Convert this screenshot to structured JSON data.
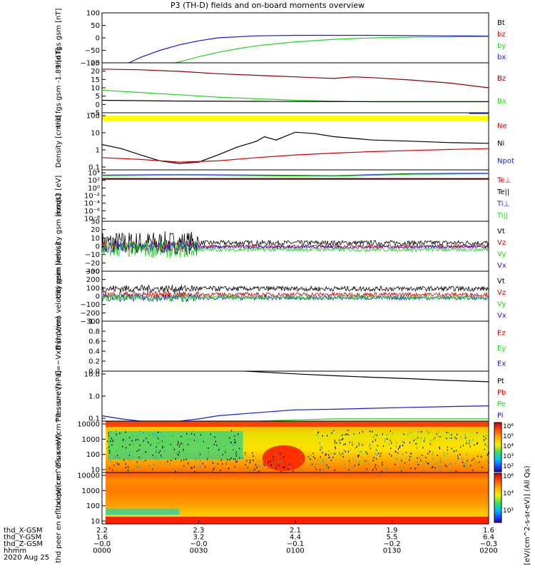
{
  "title": "P3 (TH-D) fields and on-board moments overview",
  "colors": {
    "black": "#000000",
    "red": "#d40000",
    "green": "#1fd41f",
    "blue": "#1a1ad6",
    "darkred": "#8b0000",
    "yellow": "#ffff00"
  },
  "chart_data": [
    {
      "type": "line",
      "ylabel": "thd fgs gsm [nT]",
      "ylim": [
        -100,
        100
      ],
      "yticks": [
        "100",
        "50",
        "0",
        "−50",
        "−100"
      ],
      "legend": [
        {
          "name": "Bt",
          "color": "black"
        },
        {
          "name": "bz",
          "color": "red"
        },
        {
          "name": "by",
          "color": "green"
        },
        {
          "name": "bx",
          "color": "blue"
        }
      ],
      "series": [
        {
          "color": "blue",
          "x": [
            0.07,
            0.1,
            0.15,
            0.2,
            0.25,
            0.3,
            0.4,
            0.5,
            0.6,
            0.7,
            0.8,
            0.9,
            1.0
          ],
          "y": [
            -100,
            -78,
            -50,
            -28,
            -12,
            0,
            8,
            10,
            10,
            10,
            9,
            8,
            7
          ]
        },
        {
          "color": "green",
          "x": [
            0.19,
            0.25,
            0.3,
            0.35,
            0.4,
            0.5,
            0.6,
            0.7,
            0.8,
            0.9,
            1.0
          ],
          "y": [
            -100,
            -76,
            -58,
            -44,
            -32,
            -16,
            -6,
            0,
            3,
            4,
            5
          ]
        }
      ]
    },
    {
      "type": "line",
      "ylabel": "thd fgs gsm -1.89 [nT]",
      "ylim": [
        -7,
        25
      ],
      "yticks": [
        "25",
        "20",
        "15",
        "10",
        "5",
        "0",
        "−5"
      ],
      "legend": [
        {
          "name": "Bz",
          "color": "darkred"
        },
        {
          "name": "Bx",
          "color": "green"
        }
      ],
      "series": [
        {
          "color": "darkred",
          "x": [
            0.0,
            0.1,
            0.2,
            0.3,
            0.4,
            0.5,
            0.55,
            0.6,
            0.65,
            0.7,
            0.8,
            0.9,
            1.0
          ],
          "y": [
            21,
            20.5,
            19.5,
            18,
            17,
            16,
            15.5,
            15,
            16,
            15.5,
            14,
            12,
            9
          ]
        },
        {
          "color": "green",
          "x": [
            0.0,
            0.1,
            0.2,
            0.3,
            0.4,
            0.5,
            0.6,
            0.7,
            0.8,
            0.9,
            1.0
          ],
          "y": [
            7.5,
            6,
            4.5,
            3,
            2,
            1,
            0.5,
            0,
            0,
            0,
            0
          ]
        },
        {
          "color": "black",
          "x": [
            0.0,
            0.2,
            0.4,
            0.6,
            0.8,
            1.0
          ],
          "y": [
            1,
            0.5,
            0.3,
            0.2,
            0.2,
            0.2
          ]
        }
      ],
      "extra": "yellow-bar"
    },
    {
      "type": "line",
      "ylabel": "Density [cm-3]",
      "yscale": "log",
      "ylim": [
        0.03,
        200
      ],
      "yticks": [
        "100",
        "10",
        "1",
        "0.1"
      ],
      "legend": [
        {
          "name": "Ne",
          "color": "red"
        },
        {
          "name": "Ni",
          "color": "black"
        },
        {
          "name": "Npot",
          "color": "blue"
        }
      ],
      "series": [
        {
          "color": "black",
          "x": [
            0.0,
            0.05,
            0.1,
            0.15,
            0.2,
            0.25,
            0.3,
            0.35,
            0.4,
            0.42,
            0.45,
            0.5,
            0.55,
            0.6,
            0.7,
            0.8,
            0.9,
            1.0
          ],
          "y": [
            1.5,
            0.8,
            0.3,
            0.12,
            0.08,
            0.1,
            0.3,
            1,
            2.5,
            5,
            3,
            10,
            8,
            5,
            3,
            2.5,
            2,
            1.8
          ]
        },
        {
          "color": "red",
          "x": [
            0.0,
            0.1,
            0.2,
            0.3,
            0.4,
            0.5,
            0.6,
            0.7,
            0.8,
            0.9,
            1.0
          ],
          "y": [
            0.2,
            0.15,
            0.1,
            0.12,
            0.2,
            0.3,
            0.4,
            0.5,
            0.6,
            0.7,
            0.8
          ]
        },
        {
          "color": "blue",
          "x": [
            0.95,
            1.0
          ],
          "y": [
            180,
            180
          ]
        }
      ]
    },
    {
      "type": "line",
      "ylabel": "moqt3 [eV]",
      "yscale": "log",
      "ylim": [
        1e-10,
        100000.0
      ],
      "yticks": [
        "10⁴",
        "10²",
        "10⁰",
        "10⁻²",
        "10⁻⁴",
        "10⁻⁶",
        "10⁻⁸"
      ],
      "legend": [
        {
          "name": "Te⊥",
          "color": "red"
        },
        {
          "name": "Te||",
          "color": "black"
        },
        {
          "name": "Ti⊥",
          "color": "blue"
        },
        {
          "name": "Ti||",
          "color": "green"
        }
      ],
      "series": [
        {
          "color": "blue",
          "x": [
            0.0,
            0.2,
            0.4,
            0.6,
            0.8,
            1.0
          ],
          "y": [
            3000,
            4000,
            3000,
            2000,
            8000,
            10000
          ]
        },
        {
          "color": "green",
          "x": [
            0.0,
            0.2,
            0.4,
            0.6,
            0.8,
            1.0
          ],
          "y": [
            2000,
            3000,
            2000,
            1500,
            5000,
            7000
          ]
        },
        {
          "color": "red",
          "x": [
            0.0,
            0.2,
            0.4,
            0.6,
            0.8,
            1.0
          ],
          "y": [
            300,
            300,
            300,
            300,
            300,
            300
          ]
        },
        {
          "color": "black",
          "x": [
            0.0,
            0.2,
            0.4,
            0.6,
            0.8,
            1.0
          ],
          "y": [
            200,
            200,
            200,
            200,
            200,
            200
          ]
        }
      ]
    },
    {
      "type": "line",
      "ylabel": "thd peim velocity gsm [km/s]",
      "ylim": [
        -30,
        30
      ],
      "yticks": [
        "30",
        "20",
        "10",
        "0",
        "−10",
        "−20",
        "−30"
      ],
      "legend": [
        {
          "name": "Vt",
          "color": "black"
        },
        {
          "name": "Vz",
          "color": "red"
        },
        {
          "name": "Vy",
          "color": "green"
        },
        {
          "name": "Vx",
          "color": "blue"
        }
      ],
      "noisy": [
        {
          "color": "black",
          "base": 4,
          "amp": [
            14,
            3
          ]
        },
        {
          "color": "red",
          "base": 0,
          "amp": [
            6,
            2
          ]
        },
        {
          "color": "blue",
          "base": -1,
          "amp": [
            7,
            2
          ]
        },
        {
          "color": "green",
          "base": -4,
          "amp": [
            10,
            2.5
          ]
        }
      ]
    },
    {
      "type": "line",
      "ylabel": "thd peem velocity gsm [km/s]",
      "ylim": [
        -300,
        300
      ],
      "yticks": [
        "300",
        "200",
        "100",
        "0",
        "−100",
        "−200",
        "−300"
      ],
      "legend": [
        {
          "name": "Vt",
          "color": "black"
        },
        {
          "name": "Vz",
          "color": "red"
        },
        {
          "name": "Vy",
          "color": "green"
        },
        {
          "name": "Vx",
          "color": "blue"
        }
      ],
      "noisy": [
        {
          "color": "black",
          "base": 90,
          "amp": [
            45,
            30
          ]
        },
        {
          "color": "red",
          "base": 20,
          "amp": [
            40,
            25
          ]
        },
        {
          "color": "blue",
          "base": -20,
          "amp": [
            45,
            25
          ]
        },
        {
          "color": "green",
          "base": -15,
          "amp": [
            40,
            25
          ]
        }
      ]
    },
    {
      "type": "line",
      "ylabel": "E=−VxB [mV/m]",
      "ylim": [
        0,
        1
      ],
      "yticks": [
        "1.0",
        "0.8",
        "0.6",
        "0.4",
        "0.2",
        "0.0"
      ],
      "legend": [
        {
          "name": "Ez",
          "color": "red"
        },
        {
          "name": "Ey",
          "color": "green"
        },
        {
          "name": "Ex",
          "color": "blue"
        }
      ],
      "series": []
    },
    {
      "type": "line",
      "ylabel": "Pressure [nPa]",
      "yscale": "log",
      "ylim": [
        0.03,
        20
      ],
      "yticks": [
        "10.0",
        "1.0",
        "0.1"
      ],
      "legend": [
        {
          "name": "Pt",
          "color": "black"
        },
        {
          "name": "Pb",
          "color": "red"
        },
        {
          "name": "Pe",
          "color": "green"
        },
        {
          "name": "Pi",
          "color": "blue"
        }
      ],
      "series": [
        {
          "color": "black",
          "x": [
            0.37,
            0.5,
            0.6,
            0.7,
            0.8,
            0.9,
            1.0
          ],
          "y": [
            20,
            14,
            11,
            9,
            7.5,
            6,
            5
          ]
        },
        {
          "color": "blue",
          "x": [
            0.0,
            0.05,
            0.1,
            0.15,
            0.2,
            0.25,
            0.3,
            0.4,
            0.5,
            0.6,
            0.7,
            0.8,
            0.9,
            1.0
          ],
          "y": [
            0.06,
            0.04,
            0.03,
            0.028,
            0.03,
            0.04,
            0.06,
            0.09,
            0.13,
            0.14,
            0.16,
            0.18,
            0.2,
            0.22
          ]
        },
        {
          "color": "green",
          "x": [
            0.0,
            0.1,
            0.2,
            0.3,
            0.4,
            0.5,
            0.6,
            0.7,
            0.8,
            0.9,
            1.0
          ],
          "y": [
            0.03,
            0.025,
            0.025,
            0.028,
            0.03,
            0.035,
            0.04,
            0.04,
            0.04,
            0.04,
            0.04
          ]
        }
      ]
    },
    {
      "type": "heatmap",
      "ylabel": "thd peir en eflux eV/(cm^2-s-sr-eV)",
      "yscale": "log",
      "ylim": [
        6,
        20000
      ],
      "yticks": [
        "10000",
        "1000",
        "100",
        "10"
      ],
      "variant": "ion"
    },
    {
      "type": "heatmap",
      "ylabel": "thd peer en eflux eV/(cm^2-s-sr-eV)",
      "yscale": "log",
      "ylim": [
        6,
        20000
      ],
      "yticks": [
        "10000",
        "1000",
        "100",
        "10"
      ],
      "variant": "electron"
    }
  ],
  "colorbar": {
    "label": "[eV/(cm^2-s-sr-eV)] (All Qs)",
    "ticks_upper": [
      "10⁶",
      "10⁵",
      "10⁴",
      "10³",
      "10²"
    ],
    "ticks_lower": [
      "10⁶",
      "10⁴",
      "10²"
    ]
  },
  "xaxis": {
    "ticks": [
      {
        "x": 0.0,
        "labels": [
          "2.2",
          "1.6",
          "−0.0",
          "0000"
        ]
      },
      {
        "x": 0.25,
        "labels": [
          "2.3",
          "3.2",
          "−0.0",
          "0030"
        ]
      },
      {
        "x": 0.5,
        "labels": [
          "2.1",
          "4.4",
          "−0.1",
          "0100"
        ]
      },
      {
        "x": 0.75,
        "labels": [
          "1.9",
          "5.5",
          "−0.2",
          "0130"
        ]
      },
      {
        "x": 1.0,
        "labels": [
          "1.6",
          "6.4",
          "−0.3",
          "0200"
        ]
      }
    ],
    "row_labels": [
      "thd_X-GSM",
      "thd_Y-GSM",
      "thd_Z-GSM",
      "hhmm"
    ],
    "date": "2020 Aug 25"
  }
}
